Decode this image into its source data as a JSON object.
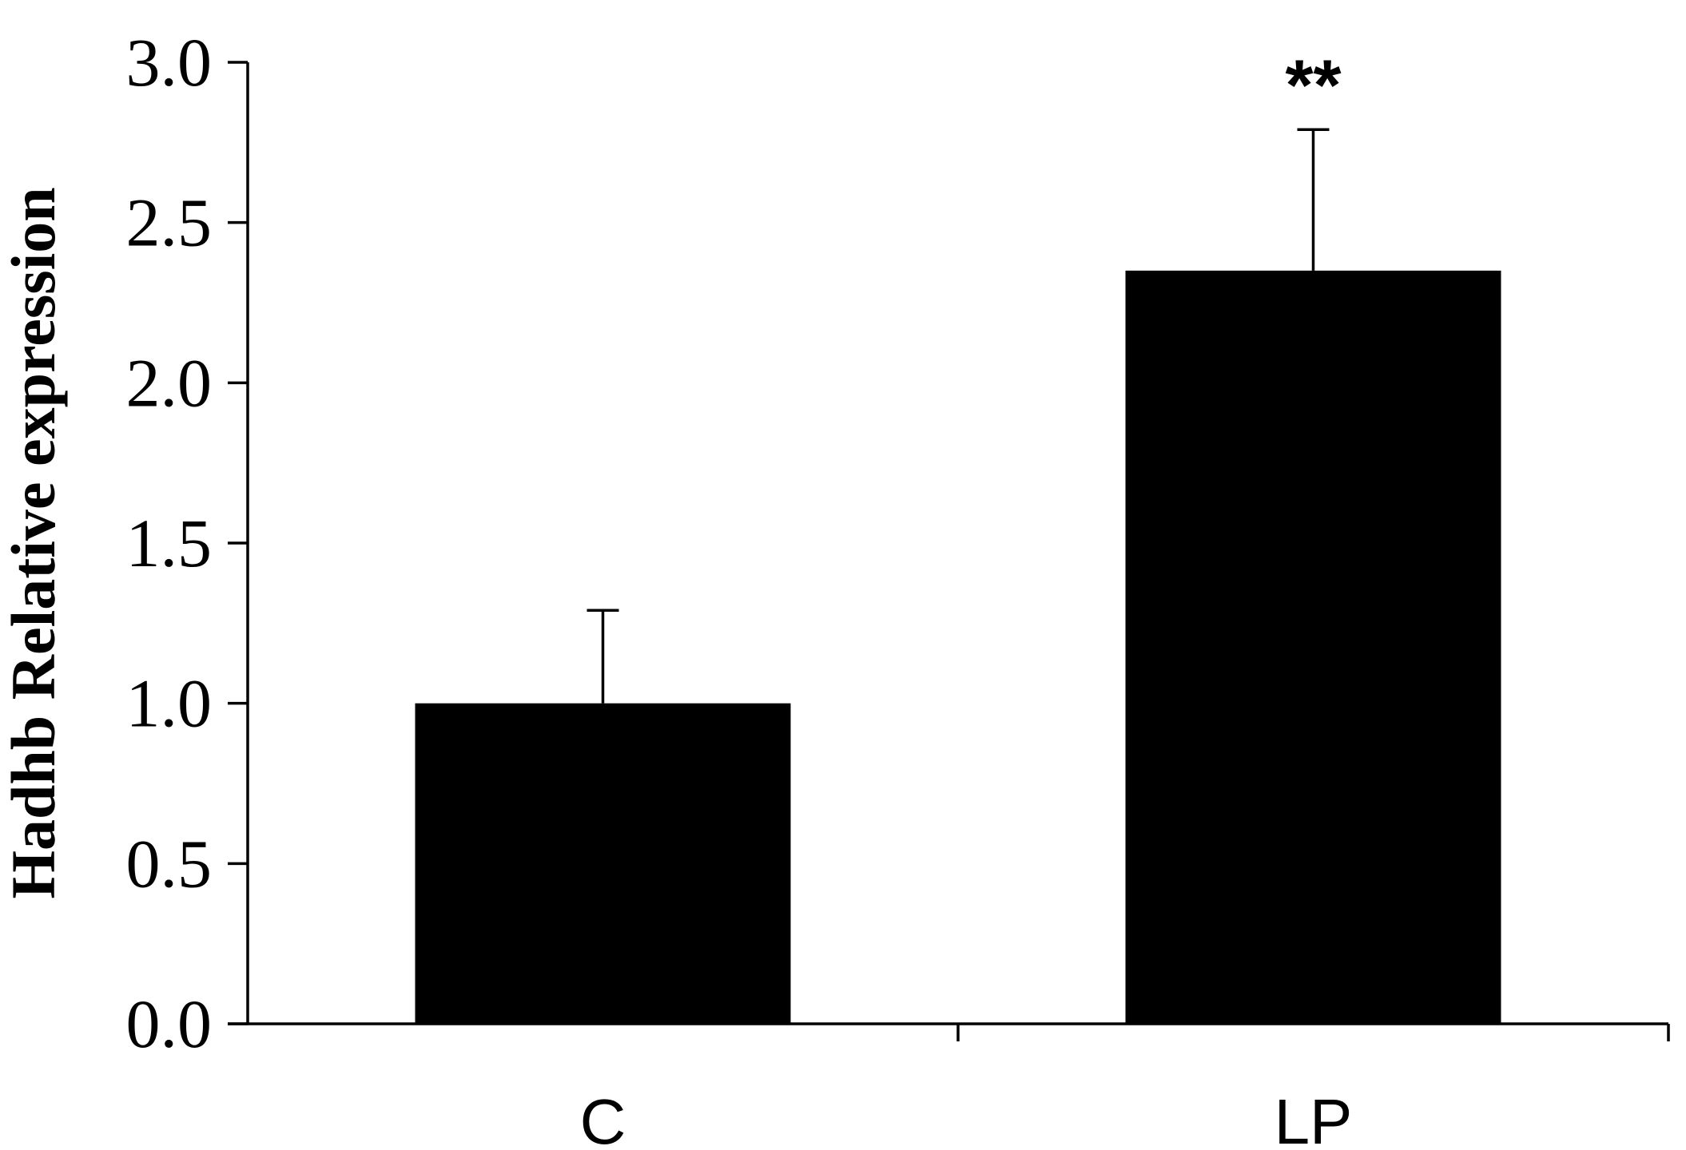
{
  "chart_data": {
    "type": "bar",
    "categories": [
      "C",
      "LP"
    ],
    "values": [
      1.0,
      2.35
    ],
    "error_bars": [
      0.29,
      0.44
    ],
    "annotations": [
      "",
      "**"
    ],
    "title": "",
    "xlabel": "",
    "ylabel": "Hadhb Relative expression",
    "ylim": [
      0,
      3.0
    ],
    "yticks": [
      0.0,
      0.5,
      1.0,
      1.5,
      2.0,
      2.5,
      3.0
    ],
    "ytick_labels": [
      "0.0",
      "0.5",
      "1.0",
      "1.5",
      "2.0",
      "2.5",
      "3.0"
    ],
    "bar_color": "#000000",
    "grid": false,
    "legend": "none"
  }
}
